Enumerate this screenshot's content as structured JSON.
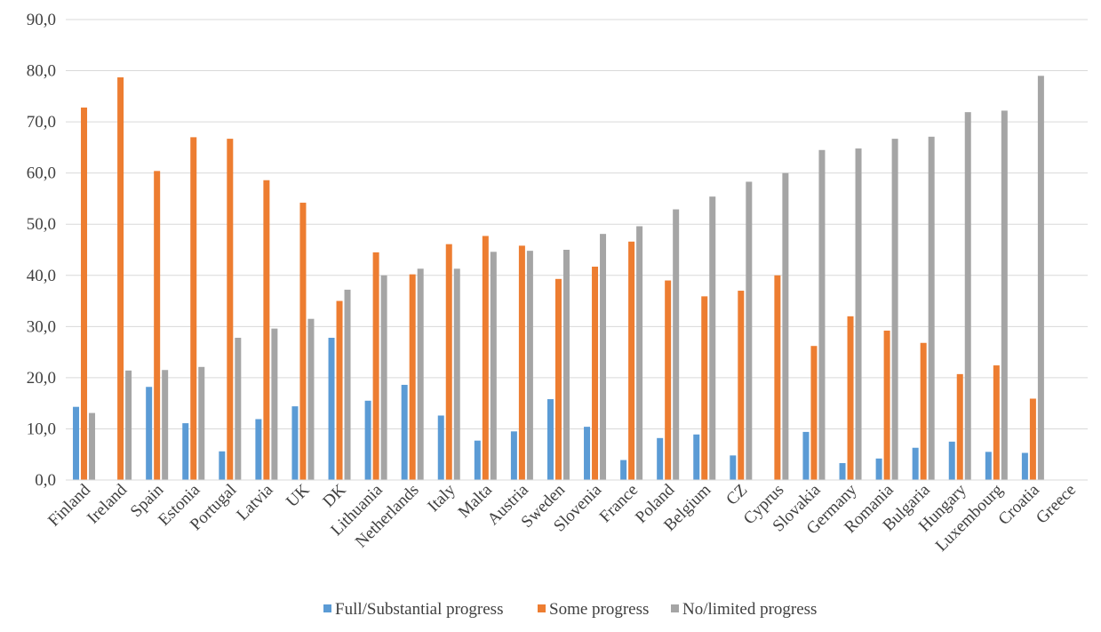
{
  "chart_data": {
    "type": "bar",
    "title": "",
    "xlabel": "",
    "ylabel": "",
    "ylim": [
      0,
      90
    ],
    "yticks": [
      "0,0",
      "10,0",
      "20,0",
      "30,0",
      "40,0",
      "50,0",
      "60,0",
      "70,0",
      "80,0",
      "90,0"
    ],
    "grid": "horizontal",
    "legend_position": "bottom",
    "categories": [
      "Finland",
      "Ireland",
      "Spain",
      "Estonia",
      "Portugal",
      "Latvia",
      "UK",
      "DK",
      "Lithuania",
      "Netherlands",
      "Italy",
      "Malta",
      "Austria",
      "Sweden",
      "Slovenia",
      "France",
      "Poland",
      "Belgium",
      "CZ",
      "Cyprus",
      "Slovakia",
      "Germany",
      "Romania",
      "Bulgaria",
      "Hungary",
      "Luxembourg",
      "Croatia",
      "Greece"
    ],
    "series": [
      {
        "name": "Full/Substantial progress",
        "color": "#5b9bd5",
        "values": [
          14.3,
          0,
          18.2,
          11.1,
          5.6,
          11.9,
          14.4,
          27.8,
          15.5,
          18.6,
          12.6,
          7.7,
          9.5,
          15.8,
          10.4,
          3.9,
          8.2,
          8.9,
          4.8,
          0,
          9.4,
          3.3,
          4.2,
          6.3,
          7.5,
          5.5,
          5.3,
          0
        ]
      },
      {
        "name": "Some progress",
        "color": "#ed7d31",
        "values": [
          72.8,
          78.7,
          60.4,
          67.0,
          66.7,
          58.6,
          54.2,
          35.0,
          44.5,
          40.2,
          46.1,
          47.7,
          45.8,
          39.3,
          41.7,
          46.6,
          39.0,
          35.9,
          37.0,
          40.0,
          26.2,
          32.0,
          29.2,
          26.8,
          20.7,
          22.4,
          15.9,
          0
        ]
      },
      {
        "name": "No/limited progress",
        "color": "#a5a5a5",
        "values": [
          13.1,
          21.4,
          21.5,
          22.1,
          27.8,
          29.6,
          31.5,
          37.2,
          40.0,
          41.3,
          41.3,
          44.6,
          44.8,
          45.0,
          48.1,
          49.6,
          52.9,
          55.4,
          58.3,
          60.0,
          64.5,
          64.8,
          66.7,
          67.1,
          71.9,
          72.2,
          79.0,
          0
        ]
      }
    ]
  }
}
